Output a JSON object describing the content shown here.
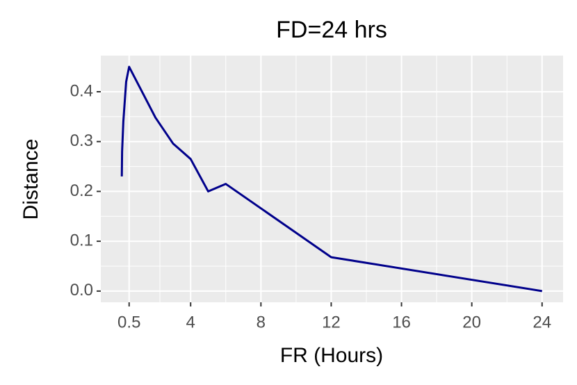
{
  "chart_data": {
    "type": "line",
    "title": "FD=24 hrs",
    "x_label": "FR (Hours)",
    "y_label": "Distance",
    "x": [
      0.083,
      0.1,
      0.17,
      0.33,
      0.5,
      2,
      3,
      4,
      5,
      6,
      12,
      24
    ],
    "series": [
      {
        "color": "#00008b",
        "values": [
          0.23,
          0.28,
          0.34,
          0.42,
          0.45,
          0.348,
          0.296,
          0.265,
          0.2,
          0.215,
          0.068,
          0
        ]
      }
    ],
    "xlim": [
      -1.112,
      25.196
    ],
    "xticks": [
      0.5,
      4,
      8,
      12,
      16,
      20,
      24
    ],
    "ylim": [
      -0.0225,
      0.4725
    ],
    "yticks": [
      {
        "value": 0,
        "label": "0.0"
      },
      0.1,
      0.2,
      0.3,
      0.4
    ],
    "grid": true
  }
}
